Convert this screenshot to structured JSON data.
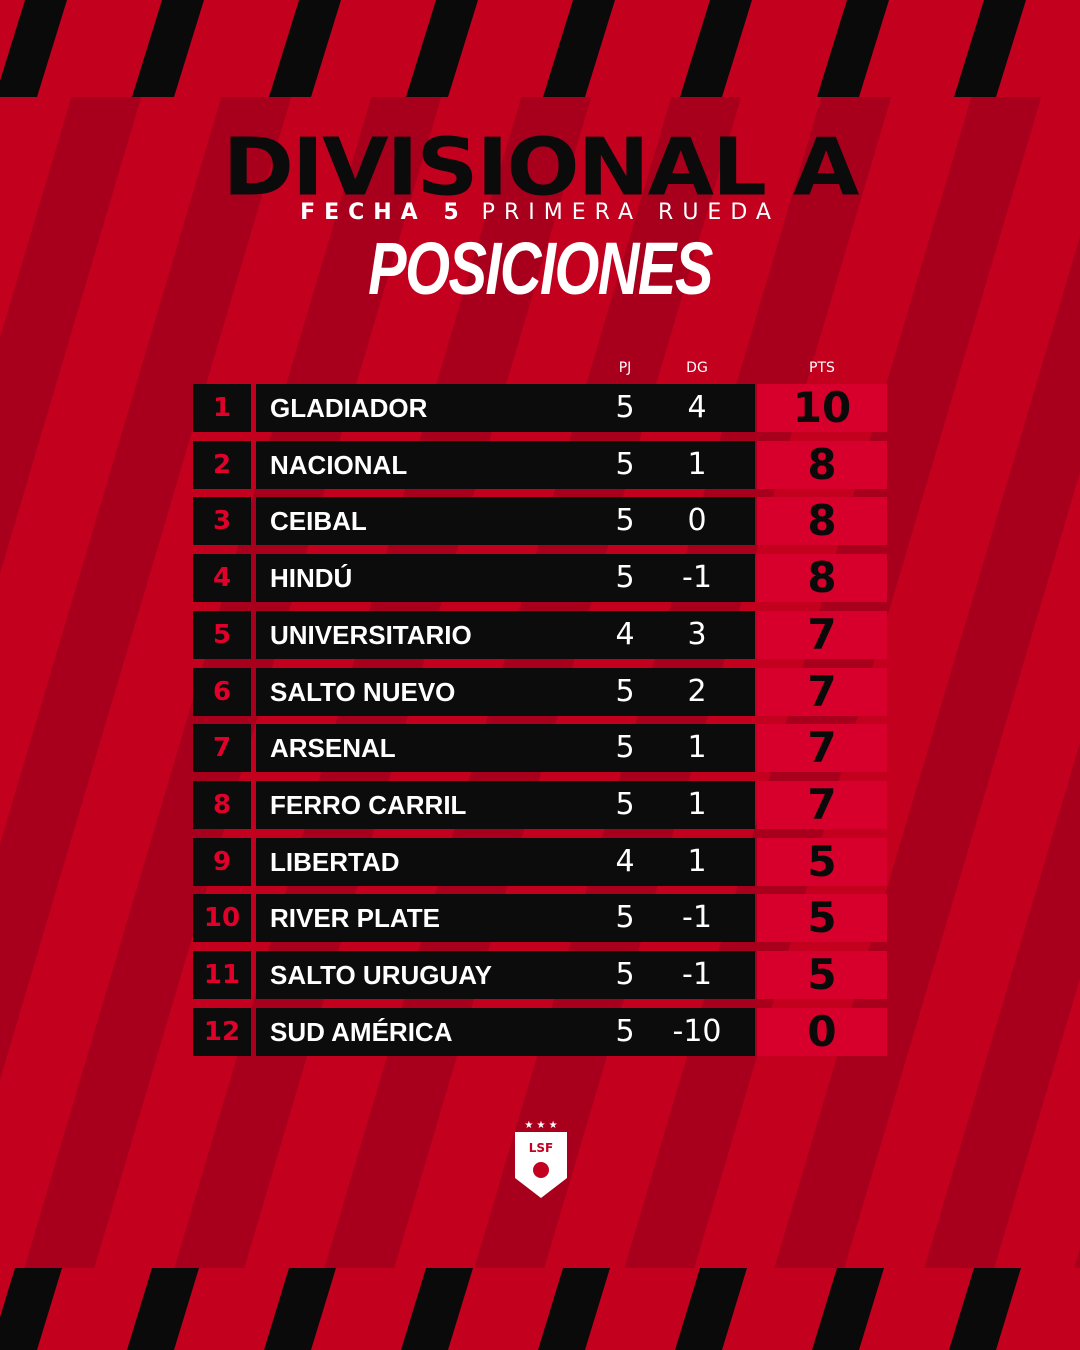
{
  "header": {
    "title": "DIVISIONAL A",
    "round": "FECHA 5",
    "phase": "PRIMERA RUEDA",
    "heading": "POSICIONES"
  },
  "table": {
    "columns": [
      "PJ",
      "DG",
      "PTS"
    ],
    "rows": [
      [
        1,
        "GLADIADOR",
        5,
        4,
        10
      ],
      [
        2,
        "NACIONAL",
        5,
        1,
        8
      ],
      [
        3,
        "CEIBAL",
        5,
        0,
        8
      ],
      [
        4,
        "HINDÚ",
        5,
        -1,
        8
      ],
      [
        5,
        "UNIVERSITARIO",
        4,
        3,
        7
      ],
      [
        6,
        "SALTO NUEVO",
        5,
        2,
        7
      ],
      [
        7,
        "ARSENAL",
        5,
        1,
        7
      ],
      [
        8,
        "FERRO CARRIL",
        5,
        1,
        7
      ],
      [
        9,
        "LIBERTAD",
        4,
        1,
        5
      ],
      [
        10,
        "RIVER PLATE",
        5,
        -1,
        5
      ],
      [
        11,
        "SALTO URUGUAY",
        5,
        -1,
        5
      ],
      [
        12,
        "SUD AMÉRICA",
        5,
        -10,
        0
      ]
    ]
  },
  "logo": {
    "text": "LSF"
  }
}
